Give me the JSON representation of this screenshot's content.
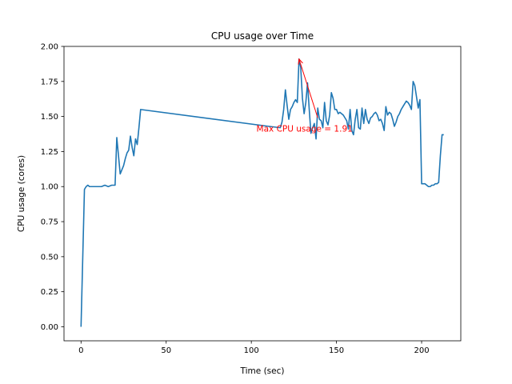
{
  "chart_data": {
    "type": "line",
    "title": "CPU usage over Time",
    "xlabel": "Time (sec)",
    "ylabel": "CPU usage (cores)",
    "xlim": [
      -10,
      223
    ],
    "ylim": [
      -0.1,
      2.0
    ],
    "xticks": [
      0,
      50,
      100,
      150,
      200
    ],
    "xtick_labels": [
      "0",
      "50",
      "100",
      "150",
      "200"
    ],
    "yticks": [
      0.0,
      0.25,
      0.5,
      0.75,
      1.0,
      1.25,
      1.5,
      1.75,
      2.0
    ],
    "ytick_labels": [
      "0.00",
      "0.25",
      "0.50",
      "0.75",
      "1.00",
      "1.25",
      "1.50",
      "1.75",
      "2.00"
    ],
    "grid": false,
    "series": [
      {
        "color": "#1f77b4",
        "x": [
          0,
          2,
          3,
          4,
          5,
          6,
          8,
          10,
          12,
          14,
          16,
          18,
          19,
          20,
          21,
          22,
          23,
          24,
          25,
          26,
          27,
          28,
          29,
          30,
          31,
          32,
          33,
          34,
          35,
          110,
          117,
          118,
          119,
          120,
          121,
          122,
          123,
          124,
          125,
          126,
          127,
          128,
          129,
          130,
          131,
          132,
          133,
          134,
          135,
          136,
          137,
          138,
          139,
          140,
          141,
          142,
          143,
          144,
          145,
          146,
          147,
          148,
          149,
          150,
          151,
          152,
          153,
          154,
          155,
          156,
          157,
          158,
          159,
          160,
          161,
          162,
          163,
          164,
          165,
          166,
          167,
          168,
          169,
          170,
          171,
          172,
          173,
          174,
          175,
          176,
          177,
          178,
          179,
          180,
          181,
          182,
          183,
          184,
          185,
          186,
          187,
          188,
          189,
          190,
          191,
          192,
          193,
          194,
          195,
          196,
          197,
          198,
          199,
          200,
          201,
          202,
          203,
          204,
          205,
          206,
          207,
          208,
          209,
          210,
          211,
          212,
          213
        ],
        "values": [
          0.0,
          0.98,
          1.0,
          1.01,
          1.0,
          1.0,
          1.0,
          1.0,
          1.0,
          1.01,
          1.0,
          1.01,
          1.01,
          1.01,
          1.35,
          1.22,
          1.09,
          1.12,
          1.15,
          1.2,
          1.24,
          1.26,
          1.36,
          1.28,
          1.22,
          1.34,
          1.3,
          1.42,
          1.55,
          1.43,
          1.42,
          1.46,
          1.55,
          1.69,
          1.58,
          1.48,
          1.55,
          1.57,
          1.6,
          1.62,
          1.6,
          1.91,
          1.85,
          1.63,
          1.52,
          1.6,
          1.74,
          1.55,
          1.38,
          1.42,
          1.45,
          1.34,
          1.56,
          1.48,
          1.47,
          1.42,
          1.6,
          1.47,
          1.44,
          1.51,
          1.67,
          1.63,
          1.55,
          1.55,
          1.52,
          1.53,
          1.52,
          1.51,
          1.49,
          1.47,
          1.41,
          1.55,
          1.4,
          1.37,
          1.48,
          1.55,
          1.42,
          1.41,
          1.56,
          1.45,
          1.55,
          1.48,
          1.45,
          1.49,
          1.5,
          1.52,
          1.53,
          1.51,
          1.47,
          1.48,
          1.45,
          1.4,
          1.57,
          1.51,
          1.53,
          1.52,
          1.48,
          1.43,
          1.46,
          1.5,
          1.52,
          1.55,
          1.57,
          1.59,
          1.61,
          1.6,
          1.58,
          1.55,
          1.75,
          1.72,
          1.64,
          1.56,
          1.62,
          1.02,
          1.02,
          1.02,
          1.01,
          1.0,
          1.0,
          1.01,
          1.01,
          1.02,
          1.02,
          1.03,
          1.22,
          1.37,
          1.37
        ]
      }
    ],
    "annotation": {
      "text": "Max CPU usage = 1.91",
      "point": [
        128,
        1.91
      ],
      "text_pos": [
        103,
        1.41
      ],
      "arrow_tail": [
        139,
        1.49
      ],
      "color": "#ff0000"
    }
  }
}
